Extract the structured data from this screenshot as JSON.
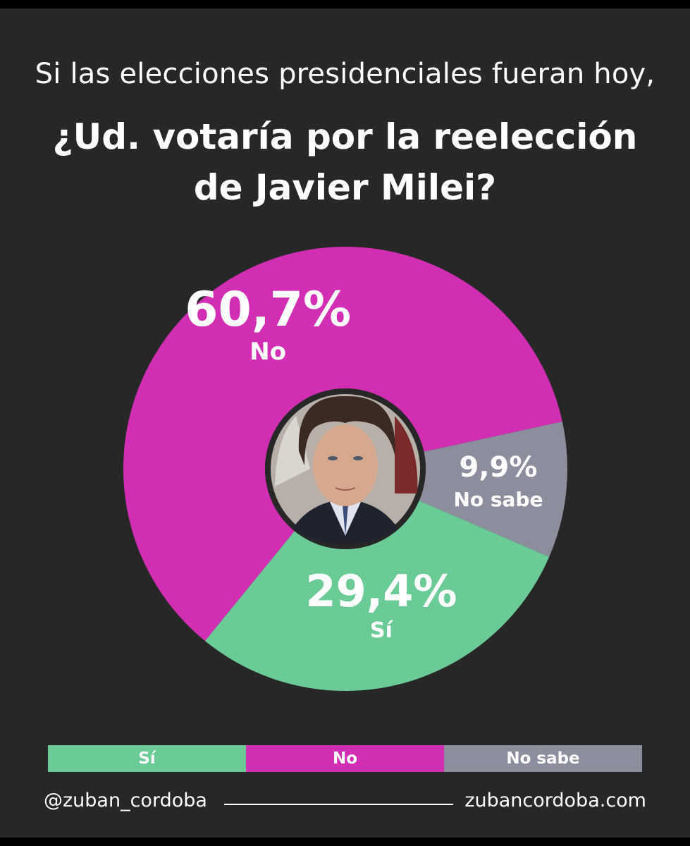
{
  "header": {
    "subtitle": "Si las elecciones presidenciales fueran hoy,",
    "title_line1": "¿Ud. votaría por la reelección",
    "title_line2": "de Javier Milei?"
  },
  "chart_data": {
    "type": "pie",
    "style": "donut",
    "title": "¿Ud. votaría por la reelección de Javier Milei?",
    "slices": [
      {
        "label": "No",
        "value": 60.7,
        "display": "60,7%",
        "color": "#D22EB4"
      },
      {
        "label": "No sabe",
        "value": 9.9,
        "display": "9,9%",
        "color": "#8C8E9E"
      },
      {
        "label": "Sí",
        "value": 29.4,
        "display": "29,4%",
        "color": "#6BCB96"
      }
    ],
    "legend_placement": "bottom"
  },
  "legend": {
    "items": [
      {
        "label": "Sí",
        "color": "#6BCB96"
      },
      {
        "label": "No",
        "color": "#D22EB4"
      },
      {
        "label": "No sabe",
        "color": "#8C8E9E"
      }
    ]
  },
  "footer": {
    "handle": "@zuban_cordoba",
    "site": "zubancordoba.com"
  },
  "colors": {
    "background": "#272727",
    "text": "#ffffff"
  }
}
